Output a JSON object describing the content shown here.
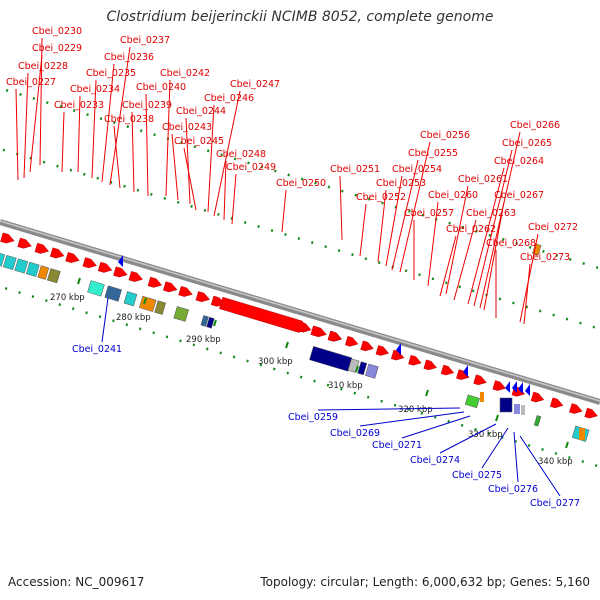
{
  "title": "Clostridium beijerinckii NCIMB 8052, complete genome",
  "footer": {
    "accession": "Accession: NC_009617",
    "summary": "Topology: circular; Length: 6,000,632 bp; Genes: 5,160"
  },
  "colors": {
    "forward_gene": "#ff0000",
    "reverse_gene": "#0000ee",
    "backbone": "#888888",
    "tick": "#118811"
  },
  "scale_ticks": [
    {
      "kbp": 270,
      "label": "270 kbp"
    },
    {
      "kbp": 280,
      "label": "280 kbp"
    },
    {
      "kbp": 290,
      "label": "290 kbp"
    },
    {
      "kbp": 300,
      "label": "300 kbp"
    },
    {
      "kbp": 310,
      "label": "310 kbp"
    },
    {
      "kbp": 320,
      "label": "320 kbp"
    },
    {
      "kbp": 330,
      "label": "330 kbp"
    },
    {
      "kbp": 340,
      "label": "340 kbp"
    }
  ],
  "forward_labels": [
    "Cbei_0227",
    "Cbei_0228",
    "Cbei_0229",
    "Cbei_0230",
    "Cbei_0233",
    "Cbei_0234",
    "Cbei_0235",
    "Cbei_0236",
    "Cbei_0237",
    "Cbei_0238",
    "Cbei_0239",
    "Cbei_0240",
    "Cbei_0242",
    "Cbei_0243",
    "Cbei_0244",
    "Cbei_0245",
    "Cbei_0246",
    "Cbei_0247",
    "Cbei_0248",
    "Cbei_0249",
    "Cbei_0250",
    "Cbei_0251",
    "Cbei_0252",
    "Cbei_0253",
    "Cbei_0254",
    "Cbei_0255",
    "Cbei_0256",
    "Cbei_0257",
    "Cbei_0260",
    "Cbei_0261",
    "Cbei_0262",
    "Cbei_0263",
    "Cbei_0264",
    "Cbei_0265",
    "Cbei_0266",
    "Cbei_0267",
    "Cbei_0268",
    "Cbei_0272",
    "Cbei_0273"
  ],
  "reverse_labels": [
    "Cbei_0241",
    "Cbei_0259",
    "Cbei_0269",
    "Cbei_0271",
    "Cbei_0274",
    "Cbei_0275",
    "Cbei_0276",
    "Cbei_0277"
  ]
}
